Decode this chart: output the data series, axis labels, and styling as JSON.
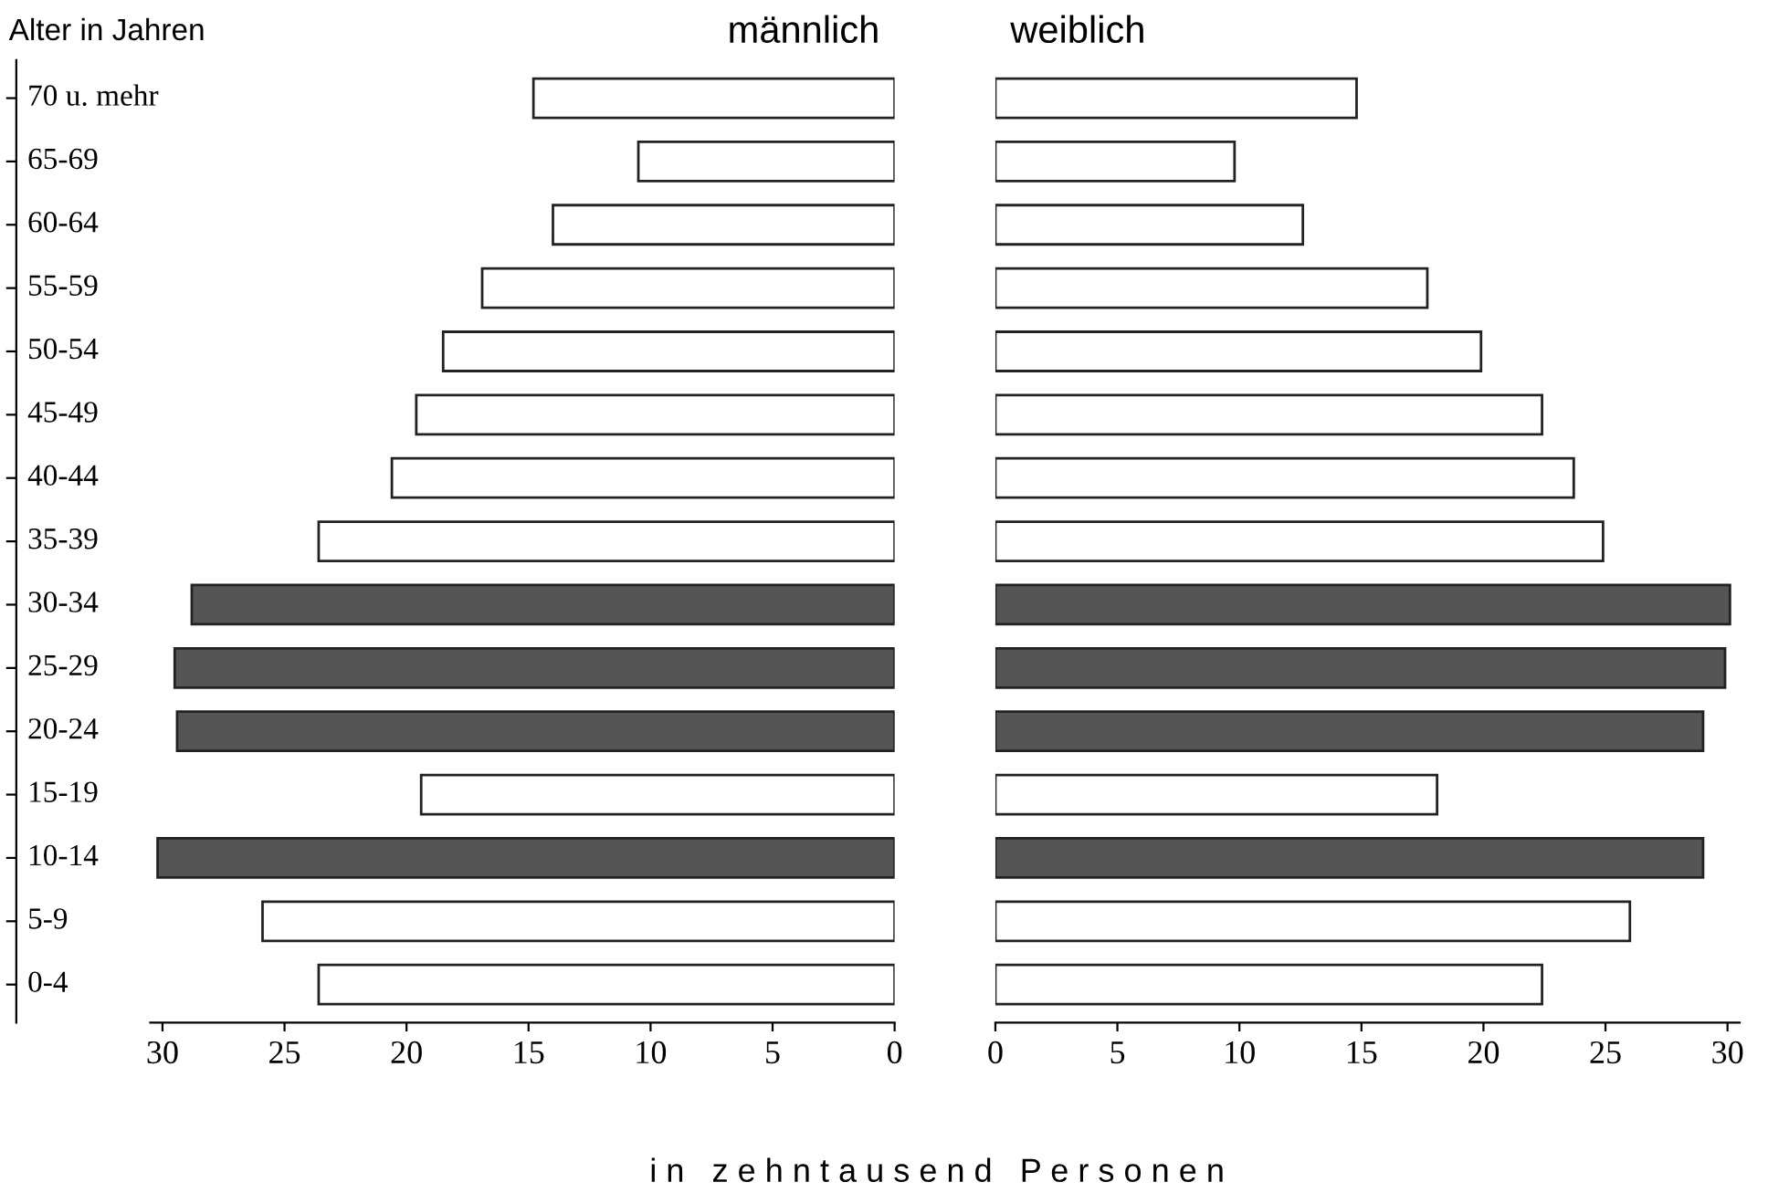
{
  "chart_data": [
    {
      "type": "bar",
      "orientation": "horizontal",
      "title": "männlich",
      "ylabel": "Alter in Jahren",
      "xlabel": "i n   z e h n t a u s e n d   P e r s o n e n",
      "categories": [
        "70 u. mehr",
        "65-69",
        "60-64",
        "55-59",
        "50-54",
        "45-49",
        "40-44",
        "35-39",
        "30-34",
        "25-29",
        "20-24",
        "15-19",
        "10-14",
        "5-9",
        "0-4"
      ],
      "values": [
        14.8,
        10.5,
        14.0,
        16.9,
        18.5,
        19.6,
        20.6,
        23.6,
        28.8,
        29.5,
        29.4,
        19.4,
        30.2,
        25.9,
        23.6
      ],
      "colors": [
        "#ffffff",
        "#ffffff",
        "#ffffff",
        "#ffffff",
        "#ffffff",
        "#ffffff",
        "#ffffff",
        "#ffffff",
        "#555555",
        "#555555",
        "#555555",
        "#ffffff",
        "#555555",
        "#ffffff",
        "#ffffff"
      ],
      "xlim": [
        30.5,
        0
      ],
      "xticks": [
        30,
        25,
        20,
        15,
        10,
        5,
        0
      ],
      "grid": false
    },
    {
      "type": "bar",
      "orientation": "horizontal",
      "title": "weiblich",
      "tick_labels": "x",
      "categories": [
        null,
        null,
        null,
        null,
        null,
        null,
        null,
        null,
        null,
        null,
        null,
        null,
        null,
        null,
        null
      ],
      "values": [
        14.8,
        9.8,
        12.6,
        17.7,
        19.9,
        22.4,
        23.7,
        24.9,
        30.1,
        29.9,
        29.0,
        18.1,
        29.0,
        26.0,
        22.4
      ],
      "colors": [
        "#ffffff",
        "#ffffff",
        "#ffffff",
        "#ffffff",
        "#ffffff",
        "#ffffff",
        "#ffffff",
        "#ffffff",
        "#555555",
        "#555555",
        "#555555",
        "#ffffff",
        "#555555",
        "#ffffff",
        "#ffffff"
      ],
      "xlim": [
        0,
        30.5
      ],
      "xticks": [
        0,
        5,
        10,
        15,
        20,
        25,
        30
      ],
      "grid": false
    }
  ]
}
